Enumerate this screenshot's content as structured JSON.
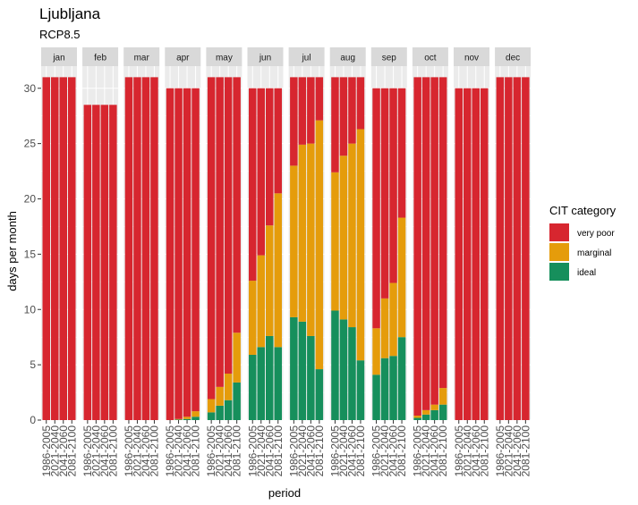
{
  "chart_data": {
    "type": "bar",
    "stacked": true,
    "faceted_by": "month",
    "title": "Ljubljana",
    "subtitle": "RCP8.5",
    "xlabel": "period",
    "ylabel": "days per month",
    "ylim": [
      0,
      32
    ],
    "yticks": [
      0,
      5,
      10,
      15,
      20,
      25,
      30
    ],
    "periods": [
      "1986-2005",
      "2021-2040",
      "2041-2060",
      "2081-2100"
    ],
    "legend": {
      "title": "CIT category",
      "position": "right",
      "entries": [
        {
          "label": "very poor",
          "color": "#d7262f"
        },
        {
          "label": "marginal",
          "color": "#e59c0b"
        },
        {
          "label": "ideal",
          "color": "#168f5c"
        }
      ]
    },
    "colors": {
      "very_poor": "#d7262f",
      "marginal": "#e59c0b",
      "ideal": "#168f5c",
      "panel_bg": "#ebebeb",
      "grid": "#ffffff",
      "strip_bg": "#d9d9d9"
    },
    "grid": true,
    "facets": [
      {
        "month": "jan",
        "ideal": [
          0,
          0,
          0,
          0
        ],
        "marginal": [
          0,
          0,
          0,
          0
        ],
        "very_poor": [
          31,
          31,
          31,
          31
        ]
      },
      {
        "month": "feb",
        "ideal": [
          0,
          0,
          0,
          0
        ],
        "marginal": [
          0,
          0,
          0,
          0
        ],
        "very_poor": [
          28.5,
          28.5,
          28.5,
          28.5
        ]
      },
      {
        "month": "mar",
        "ideal": [
          0,
          0,
          0,
          0
        ],
        "marginal": [
          0,
          0,
          0,
          0
        ],
        "very_poor": [
          31,
          31,
          31,
          31
        ]
      },
      {
        "month": "apr",
        "ideal": [
          0,
          0.05,
          0.1,
          0.3
        ],
        "marginal": [
          0,
          0.05,
          0.2,
          0.5
        ],
        "very_poor": [
          30,
          29.9,
          29.7,
          29.2
        ]
      },
      {
        "month": "may",
        "ideal": [
          0.7,
          1.3,
          1.8,
          3.4
        ],
        "marginal": [
          1.2,
          1.7,
          2.4,
          4.5
        ],
        "very_poor": [
          29.1,
          28.0,
          26.8,
          23.1
        ]
      },
      {
        "month": "jun",
        "ideal": [
          5.9,
          6.6,
          7.6,
          6.6
        ],
        "marginal": [
          6.7,
          8.3,
          10.0,
          13.9
        ],
        "very_poor": [
          17.4,
          15.1,
          12.4,
          9.5
        ]
      },
      {
        "month": "jul",
        "ideal": [
          9.3,
          8.9,
          7.6,
          4.6
        ],
        "marginal": [
          13.7,
          16.0,
          17.4,
          22.5
        ],
        "very_poor": [
          8.0,
          6.1,
          6.0,
          3.9
        ]
      },
      {
        "month": "aug",
        "ideal": [
          9.9,
          9.1,
          8.4,
          5.4
        ],
        "marginal": [
          12.5,
          14.8,
          16.6,
          20.9
        ],
        "very_poor": [
          8.6,
          7.1,
          6.0,
          4.7
        ]
      },
      {
        "month": "sep",
        "ideal": [
          4.1,
          5.6,
          5.8,
          7.5
        ],
        "marginal": [
          4.2,
          5.4,
          6.6,
          10.8
        ],
        "very_poor": [
          21.7,
          19.0,
          17.6,
          11.7
        ]
      },
      {
        "month": "oct",
        "ideal": [
          0.2,
          0.5,
          0.9,
          1.4
        ],
        "marginal": [
          0.2,
          0.4,
          0.5,
          1.5
        ],
        "very_poor": [
          30.6,
          30.1,
          29.6,
          28.1
        ]
      },
      {
        "month": "nov",
        "ideal": [
          0,
          0,
          0,
          0
        ],
        "marginal": [
          0,
          0,
          0,
          0
        ],
        "very_poor": [
          30,
          30,
          30,
          30
        ]
      },
      {
        "month": "dec",
        "ideal": [
          0,
          0,
          0,
          0
        ],
        "marginal": [
          0,
          0,
          0,
          0
        ],
        "very_poor": [
          31,
          31,
          31,
          31
        ]
      }
    ]
  }
}
